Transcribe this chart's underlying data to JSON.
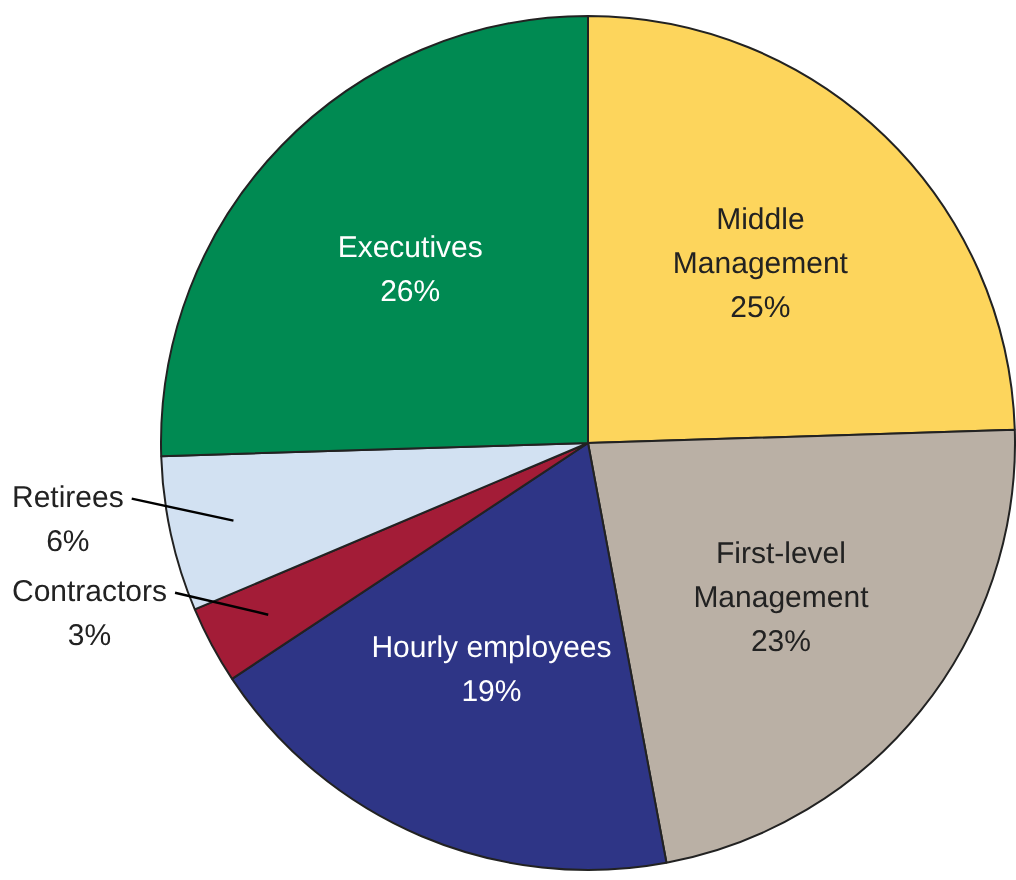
{
  "chart_data": {
    "type": "pie",
    "categories": [
      "Middle Management",
      "First-level Management",
      "Hourly employees",
      "Contractors",
      "Retirees",
      "Executives"
    ],
    "values": [
      25,
      23,
      19,
      3,
      6,
      26
    ],
    "colors": [
      "#fdd55c",
      "#bab0a5",
      "#2e3586",
      "#a31c37",
      "#d2e1f2",
      "#008a52"
    ],
    "value_labels": [
      "25%",
      "23%",
      "19%",
      "3%",
      "6%",
      "26%"
    ],
    "legend": false
  }
}
